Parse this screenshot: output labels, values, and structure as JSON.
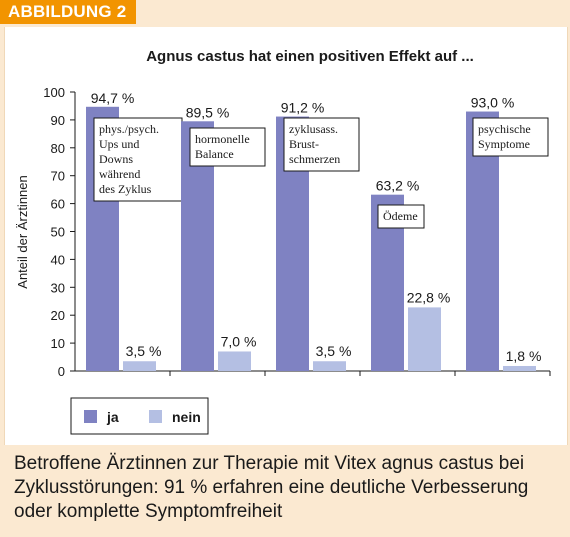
{
  "figure_tag": "ABBILDUNG 2",
  "caption": "Betroffene Ärztinnen zur Therapie mit Vitex agnus castus bei Zyklusstörungen: 91 % erfahren eine deutliche Verbesserung oder komplette Symptomfreiheit",
  "colors": {
    "ja": "#7f82c2",
    "nein": "#b4bfe3",
    "accent": "#f29400"
  },
  "chart_data": {
    "type": "bar",
    "title": "Agnus castus hat einen positiven Effekt auf ...",
    "ylabel": "Anteil der Ärztinnen",
    "ylim": [
      0,
      100
    ],
    "yticks": [
      0,
      10,
      20,
      30,
      40,
      50,
      60,
      70,
      80,
      90,
      100
    ],
    "categories": [
      "phys./psych.\nUps und\nDowns\nwährend\ndes Zyklus",
      "hormonelle\nBalance",
      "zyklusass.\nBrust-\nschmerzen",
      "Ödeme",
      "psychische\nSymptome"
    ],
    "series": [
      {
        "name": "ja",
        "values": [
          94.7,
          89.5,
          91.2,
          63.2,
          93.0
        ],
        "labels": [
          "94,7 %",
          "89,5 %",
          "91,2 %",
          "63,2 %",
          "93,0 %"
        ]
      },
      {
        "name": "nein",
        "values": [
          3.5,
          7.0,
          3.5,
          22.8,
          1.8
        ],
        "labels": [
          "3,5 %",
          "7,0 %",
          "3,5 %",
          "22,8 %",
          "1,8 %"
        ]
      }
    ],
    "legend": "bottom-left"
  }
}
